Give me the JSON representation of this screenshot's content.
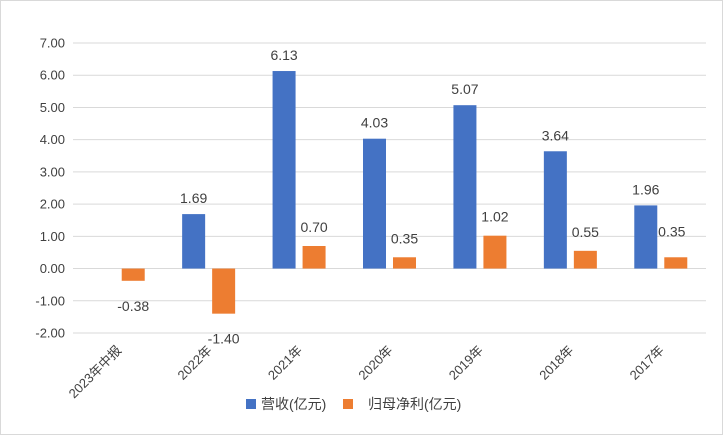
{
  "chart_data": {
    "type": "bar",
    "title": "",
    "xlabel": "",
    "ylabel": "",
    "categories": [
      "2023年中报",
      "2022年",
      "2021年",
      "2020年",
      "2019年",
      "2018年",
      "2017年"
    ],
    "series": [
      {
        "name": "营收(亿元)",
        "color": "#4472C4",
        "values": [
          null,
          1.69,
          6.13,
          4.03,
          5.07,
          3.64,
          1.96
        ],
        "labels": [
          "",
          "1.69",
          "6.13",
          "4.03",
          "5.07",
          "3.64",
          "1.96"
        ]
      },
      {
        "name": "归母净利(亿元)",
        "color": "#ED7D31",
        "values": [
          -0.38,
          -1.4,
          0.7,
          0.35,
          1.02,
          0.55,
          0.35
        ],
        "labels": [
          "-0.38",
          "-1.40",
          "0.70",
          "0.35",
          "1.02",
          "0.55",
          "0.35"
        ]
      }
    ],
    "ylim": [
      -2.0,
      7.0
    ],
    "yticks": [
      "7.00",
      "6.00",
      "5.00",
      "4.00",
      "3.00",
      "2.00",
      "1.00",
      "0.00",
      "-1.00",
      "-2.00"
    ],
    "grid": true,
    "legend": "bottom"
  }
}
